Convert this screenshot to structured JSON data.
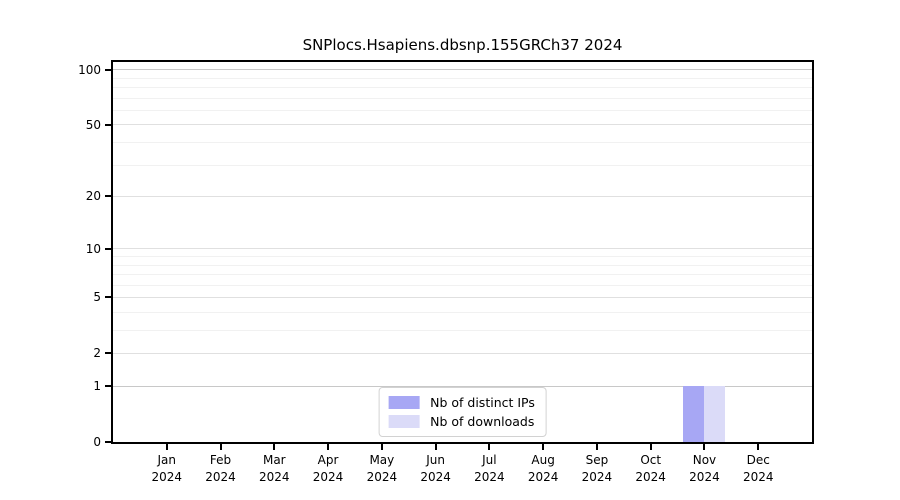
{
  "chart_data": {
    "type": "bar",
    "title": "SNPlocs.Hsapiens.dbsnp.155GRCh37 2024",
    "categories": [
      "Jan",
      "Feb",
      "Mar",
      "Apr",
      "May",
      "Jun",
      "Jul",
      "Aug",
      "Sep",
      "Oct",
      "Nov",
      "Dec"
    ],
    "category_year": "2024",
    "series": [
      {
        "name": "Nb of distinct IPs",
        "color": "#a7a7f4",
        "values": [
          0,
          0,
          0,
          0,
          0,
          0,
          0,
          0,
          0,
          0,
          1,
          0
        ]
      },
      {
        "name": "Nb of downloads",
        "color": "#dbdbf8",
        "values": [
          0,
          0,
          0,
          0,
          0,
          0,
          0,
          0,
          0,
          0,
          1,
          0
        ]
      }
    ],
    "y_axis": {
      "scale": "log10(1+v)",
      "major_ticks": [
        0,
        1,
        2,
        5,
        10,
        20,
        50,
        100
      ],
      "minor_gridlines": [
        3,
        4,
        6,
        7,
        8,
        9,
        30,
        40,
        60,
        70,
        80,
        90
      ],
      "top_value": 110,
      "emphasized_gridlines": [
        1,
        100
      ]
    },
    "legend_position": "lower center",
    "grid": true
  },
  "colors": {
    "spine": "#000000",
    "grid_major": "#e0e0e0",
    "grid_emphasis": "#c8c8c8",
    "grid_minor": "#f1f1f1",
    "background": "#ffffff",
    "text": "#000000"
  }
}
